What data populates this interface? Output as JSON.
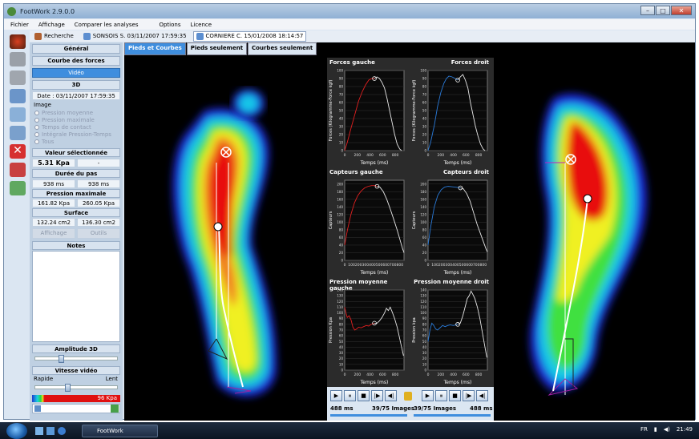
{
  "window": {
    "title": "FootWork 2.9.0.0"
  },
  "menu": [
    "Fichier",
    "Affichage",
    "Comparer les analyses",
    "Options",
    "Licence"
  ],
  "patient_tabs": [
    {
      "label": "Recherche"
    },
    {
      "label": "SONSOIS S. 03/11/2007 17:59:35"
    },
    {
      "label": "CORNIERE C. 15/01/2008 18:14:57"
    }
  ],
  "panel": {
    "general": "Général",
    "courbe": "Courbe des forces",
    "video": "Vidéo",
    "three_d": "3D",
    "date": "Date : 03/11/2007 17:59:35",
    "image_label": "Image",
    "image_options": [
      "Pression moyenne",
      "Pression maximale",
      "Temps de contact",
      "Intégrale Pression-Temps",
      "Tous"
    ],
    "valeur_label": "Valeur sélectionnée",
    "valeur": "5.31 Kpa",
    "valeur_right": "-",
    "duree_label": "Durée du pas",
    "duree_left": "938 ms",
    "duree_right": "938 ms",
    "pression_label": "Pression maximale",
    "pression_left": "161.82 Kpa",
    "pression_right": "260.05 Kpa",
    "surface_label": "Surface",
    "surface_left": "132.24 cm2",
    "surface_right": "136.30 cm2",
    "affichage": "Affichage",
    "outils": "Outils",
    "notes_label": "Notes",
    "amplitude_label": "Amplitude 3D",
    "vitesse_label": "Vitesse vidéo",
    "rapide": "Rapide",
    "lent": "Lent",
    "kpa_scale": "96 Kpa",
    "amplitude_level": 0.3,
    "vitesse_level": 0.38
  },
  "view_tabs": [
    "Pieds et Courbes",
    "Pieds seulement",
    "Courbes seulement"
  ],
  "charts": [
    {
      "title": "Forces gauche",
      "ylabel": "Forces (Kilogramme-Force kgf)",
      "xlabel": "Temps (ms)",
      "color": "#e02020",
      "yticks": [
        "0",
        "10",
        "20",
        "30",
        "40",
        "50",
        "60",
        "70",
        "80",
        "90",
        "100"
      ],
      "xticks": [
        "0",
        "200",
        "400",
        "600",
        "800"
      ],
      "ymax": 100,
      "xmax": 938,
      "cursor": [
        470,
        90
      ],
      "points": [
        [
          0,
          0
        ],
        [
          40,
          10
        ],
        [
          100,
          28
        ],
        [
          160,
          45
        ],
        [
          220,
          62
        ],
        [
          280,
          74
        ],
        [
          330,
          82
        ],
        [
          380,
          88
        ],
        [
          430,
          90
        ],
        [
          470,
          90
        ],
        [
          510,
          92
        ],
        [
          550,
          90
        ],
        [
          590,
          85
        ],
        [
          630,
          78
        ],
        [
          670,
          65
        ],
        [
          710,
          50
        ],
        [
          750,
          35
        ],
        [
          790,
          20
        ],
        [
          830,
          8
        ],
        [
          870,
          2
        ],
        [
          900,
          0
        ]
      ]
    },
    {
      "title": "Forces droit",
      "ylabel": "Forces (Kilogramme-Force kgf)",
      "xlabel": "Temps (ms)",
      "color": "#2a7ad8",
      "yticks": [
        "0",
        "10",
        "20",
        "30",
        "40",
        "50",
        "60",
        "70",
        "80",
        "90",
        "100"
      ],
      "xticks": [
        "0",
        "200",
        "400",
        "600",
        "800"
      ],
      "ymax": 100,
      "xmax": 938,
      "cursor": [
        470,
        88
      ],
      "points": [
        [
          0,
          0
        ],
        [
          40,
          10
        ],
        [
          100,
          32
        ],
        [
          150,
          55
        ],
        [
          200,
          72
        ],
        [
          250,
          84
        ],
        [
          290,
          90
        ],
        [
          330,
          93
        ],
        [
          380,
          92
        ],
        [
          430,
          90
        ],
        [
          470,
          88
        ],
        [
          510,
          92
        ],
        [
          550,
          95
        ],
        [
          590,
          88
        ],
        [
          630,
          78
        ],
        [
          670,
          60
        ],
        [
          710,
          45
        ],
        [
          750,
          30
        ],
        [
          790,
          18
        ],
        [
          830,
          8
        ],
        [
          870,
          2
        ],
        [
          900,
          0
        ]
      ]
    },
    {
      "title": "Capteurs gauche",
      "ylabel": "Capteurs",
      "xlabel": "Temps (ms)",
      "color": "#e02020",
      "yticks": [
        "0",
        "20",
        "40",
        "60",
        "80",
        "100",
        "120",
        "140",
        "160",
        "180",
        "200"
      ],
      "xticks": [
        "0",
        "100",
        "200",
        "300",
        "400",
        "500",
        "600",
        "700",
        "800"
      ],
      "ymax": 210,
      "xmax": 860,
      "cursor": [
        470,
        194
      ],
      "points": [
        [
          0,
          40
        ],
        [
          40,
          80
        ],
        [
          90,
          120
        ],
        [
          140,
          150
        ],
        [
          190,
          170
        ],
        [
          240,
          182
        ],
        [
          290,
          190
        ],
        [
          340,
          194
        ],
        [
          390,
          196
        ],
        [
          440,
          196
        ],
        [
          470,
          194
        ],
        [
          510,
          192
        ],
        [
          560,
          180
        ],
        [
          610,
          160
        ],
        [
          660,
          135
        ],
        [
          710,
          108
        ],
        [
          760,
          80
        ],
        [
          800,
          55
        ],
        [
          840,
          30
        ],
        [
          860,
          20
        ]
      ]
    },
    {
      "title": "Capteurs droit",
      "ylabel": "Capteurs",
      "xlabel": "Temps (ms)",
      "color": "#2a7ad8",
      "yticks": [
        "0",
        "20",
        "40",
        "60",
        "80",
        "100",
        "120",
        "140",
        "160",
        "180",
        "200"
      ],
      "xticks": [
        "0",
        "100",
        "200",
        "300",
        "400",
        "500",
        "600",
        "700",
        "800"
      ],
      "ymax": 210,
      "xmax": 860,
      "cursor": [
        470,
        190
      ],
      "points": [
        [
          0,
          40
        ],
        [
          40,
          90
        ],
        [
          90,
          140
        ],
        [
          140,
          170
        ],
        [
          190,
          185
        ],
        [
          240,
          192
        ],
        [
          290,
          194
        ],
        [
          340,
          193
        ],
        [
          390,
          192
        ],
        [
          440,
          191
        ],
        [
          470,
          190
        ],
        [
          510,
          188
        ],
        [
          560,
          175
        ],
        [
          610,
          155
        ],
        [
          660,
          125
        ],
        [
          710,
          95
        ],
        [
          760,
          70
        ],
        [
          800,
          50
        ],
        [
          840,
          30
        ],
        [
          860,
          22
        ]
      ]
    },
    {
      "title": "Pression moyenne gauche",
      "ylabel": "Pression Kpa",
      "xlabel": "Temps (ms)",
      "color": "#e02020",
      "yticks": [
        "0",
        "10",
        "20",
        "30",
        "40",
        "50",
        "60",
        "70",
        "80",
        "90",
        "100",
        "110",
        "120",
        "130",
        "140"
      ],
      "xticks": [
        "0",
        "200",
        "400",
        "600",
        "800"
      ],
      "ymax": 140,
      "xmax": 938,
      "cursor": [
        470,
        82
      ],
      "points": [
        [
          0,
          110
        ],
        [
          20,
          100
        ],
        [
          40,
          92
        ],
        [
          70,
          95
        ],
        [
          100,
          88
        ],
        [
          130,
          75
        ],
        [
          160,
          70
        ],
        [
          190,
          72
        ],
        [
          220,
          75
        ],
        [
          260,
          74
        ],
        [
          300,
          76
        ],
        [
          340,
          78
        ],
        [
          380,
          77
        ],
        [
          420,
          80
        ],
        [
          470,
          82
        ],
        [
          510,
          82
        ],
        [
          550,
          86
        ],
        [
          590,
          92
        ],
        [
          630,
          100
        ],
        [
          660,
          108
        ],
        [
          690,
          104
        ],
        [
          720,
          110
        ],
        [
          750,
          102
        ],
        [
          790,
          90
        ],
        [
          830,
          75
        ],
        [
          870,
          55
        ],
        [
          900,
          40
        ],
        [
          930,
          25
        ]
      ]
    },
    {
      "title": "Pression moyenne droit",
      "ylabel": "Pression kpa",
      "xlabel": "Temps (ms)",
      "color": "#2a7ad8",
      "yticks": [
        "0",
        "10",
        "20",
        "30",
        "40",
        "50",
        "60",
        "70",
        "80",
        "90",
        "100",
        "110",
        "120",
        "130",
        "140"
      ],
      "xticks": [
        "0",
        "200",
        "400",
        "600",
        "800"
      ],
      "ymax": 140,
      "xmax": 938,
      "cursor": [
        470,
        80
      ],
      "points": [
        [
          0,
          50
        ],
        [
          30,
          70
        ],
        [
          60,
          82
        ],
        [
          90,
          78
        ],
        [
          120,
          72
        ],
        [
          150,
          70
        ],
        [
          190,
          74
        ],
        [
          230,
          78
        ],
        [
          270,
          76
        ],
        [
          310,
          78
        ],
        [
          350,
          79
        ],
        [
          400,
          78
        ],
        [
          440,
          79
        ],
        [
          470,
          80
        ],
        [
          510,
          82
        ],
        [
          550,
          95
        ],
        [
          590,
          112
        ],
        [
          620,
          125
        ],
        [
          650,
          130
        ],
        [
          680,
          138
        ],
        [
          710,
          132
        ],
        [
          740,
          125
        ],
        [
          780,
          110
        ],
        [
          820,
          90
        ],
        [
          860,
          65
        ],
        [
          900,
          40
        ],
        [
          930,
          22
        ]
      ]
    }
  ],
  "playback": {
    "left_ms": "488 ms",
    "left_images": "39/75 Images",
    "right_images": "39/75 Images",
    "right_ms": "488 ms",
    "buttons": [
      "▶",
      "⏸",
      "■",
      "|▶",
      "◀|"
    ]
  },
  "taskbar": {
    "app": "FootWork",
    "lang": "FR",
    "clock": "21:49"
  }
}
